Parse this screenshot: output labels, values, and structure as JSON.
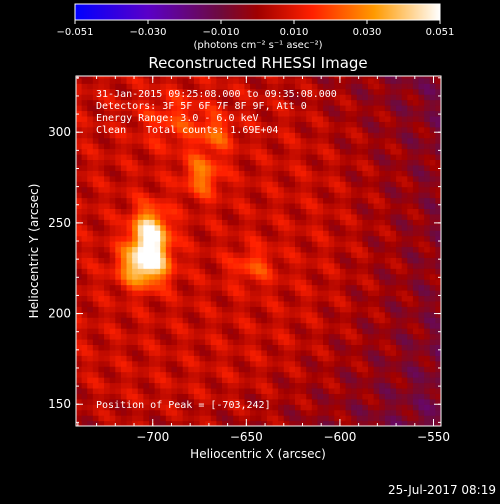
{
  "colorbar": {
    "ticks": [
      "−0.051",
      "−0.030",
      "−0.010",
      "0.010",
      "0.030",
      "0.051"
    ],
    "unit_label": "(photons cm⁻² s⁻¹ asec⁻²)"
  },
  "chart_data": {
    "type": "heatmap",
    "title": "Reconstructed RHESSI Image",
    "xlabel": "Heliocentric X (arcsec)",
    "ylabel": "Heliocentric Y (arcsec)",
    "xlim": [
      -741,
      -546
    ],
    "ylim": [
      138,
      331
    ],
    "clim": [
      -0.051,
      0.051
    ],
    "x_ticks": [
      {
        "v": -700,
        "label": "−700"
      },
      {
        "v": -650,
        "label": "−650"
      },
      {
        "v": -600,
        "label": "−600"
      },
      {
        "v": -550,
        "label": "−550"
      }
    ],
    "y_ticks": [
      {
        "v": 150,
        "label": "150"
      },
      {
        "v": 200,
        "label": "200"
      },
      {
        "v": 250,
        "label": "250"
      },
      {
        "v": 300,
        "label": "300"
      }
    ],
    "annotations": {
      "time_range": "31-Jan-2015 09:25:08.000 to 09:35:08.000",
      "detectors": "Detectors: 3F 5F 6F 7F 8F 9F, Att 0",
      "energy": "Energy Range: 3.0 - 6.0 keV",
      "clean_label": "Clean",
      "counts": "Total counts: 1.69E+04",
      "peak": "Position of Peak = [-703,242]"
    },
    "peak": {
      "x": -703,
      "y": 242,
      "value": 0.051
    },
    "sources": [
      {
        "x": -703,
        "y": 242,
        "amp": 0.046,
        "sx": 7,
        "sy": 10
      },
      {
        "x": -706,
        "y": 225,
        "amp": 0.04,
        "sx": 9,
        "sy": 8
      },
      {
        "x": -675,
        "y": 275,
        "amp": 0.022,
        "sx": 7,
        "sy": 8
      },
      {
        "x": -668,
        "y": 298,
        "amp": 0.016,
        "sx": 7,
        "sy": 7
      },
      {
        "x": -648,
        "y": 225,
        "amp": 0.014,
        "sx": 8,
        "sy": 7
      },
      {
        "x": -690,
        "y": 305,
        "amp": 0.012,
        "sx": 12,
        "sy": 10
      }
    ]
  },
  "footer": {
    "timestamp": "25-Jul-2017 08:19"
  }
}
